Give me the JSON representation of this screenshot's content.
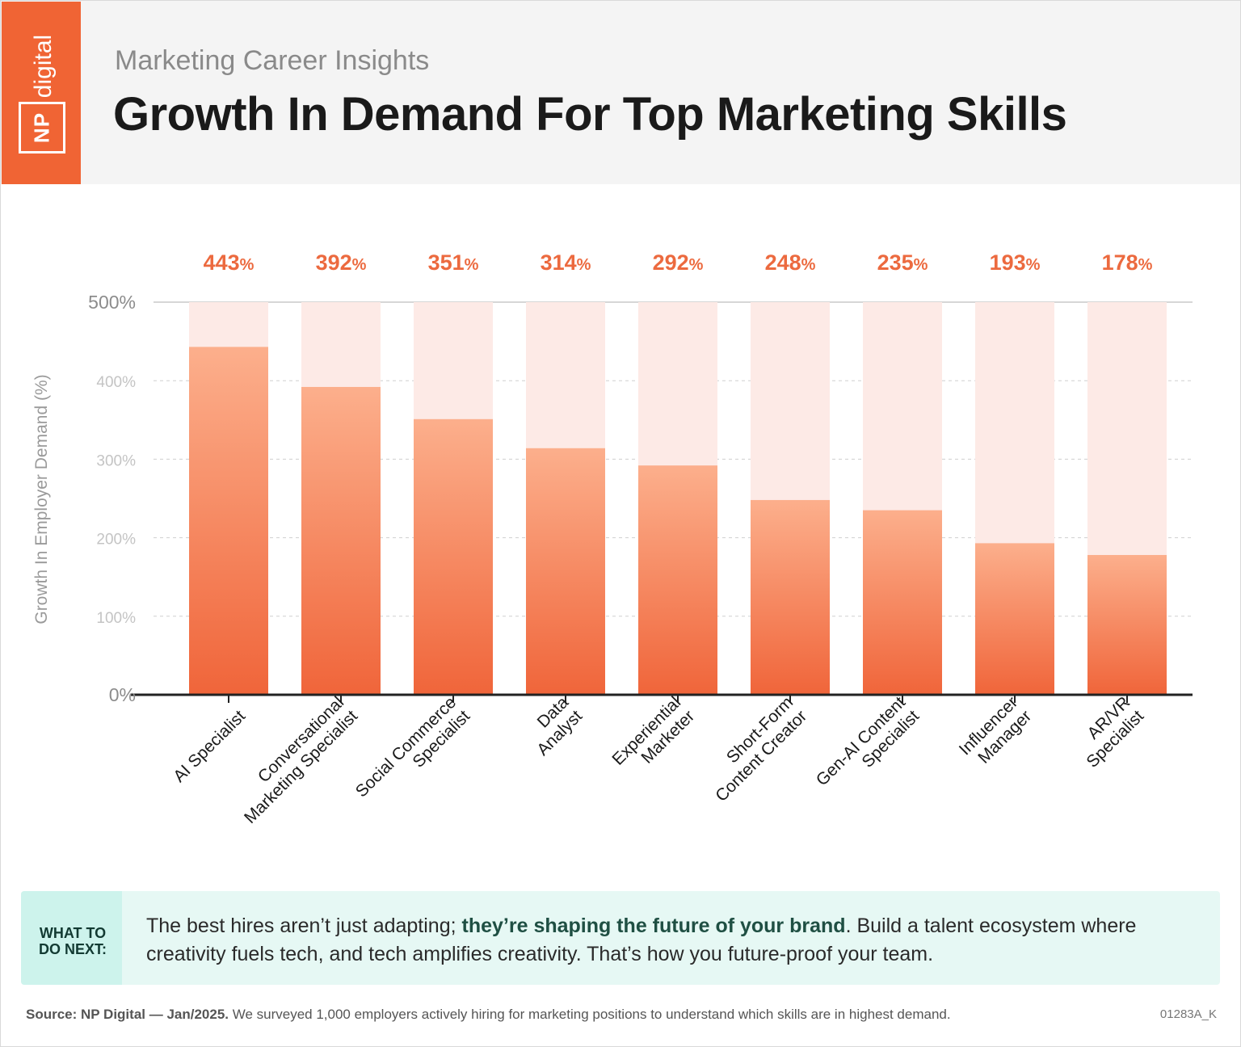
{
  "header": {
    "logo_np": "NP",
    "logo_digital": "digital",
    "subtitle": "Marketing Career Insights",
    "title": "Growth In Demand For Top Marketing Skills"
  },
  "colors": {
    "brand": "#f06434",
    "bar_top": "#fcaf8c",
    "bar_bottom": "#f0653a",
    "bar_bg": "#fdeae6",
    "value_label": "#ec6a3f",
    "callout_bg": "#e6f8f4"
  },
  "chart_data": {
    "type": "bar",
    "title": "Growth In Demand For Top Marketing Skills",
    "ylabel": "Growth In Employer Demand (%)",
    "xlabel": "",
    "ylim": [
      0,
      500
    ],
    "yticks": [
      "0%",
      "100%",
      "200%",
      "300%",
      "400%",
      "500%"
    ],
    "grid": true,
    "categories": [
      [
        "AI Specialist"
      ],
      [
        "Conversational",
        "Marketing Specialist"
      ],
      [
        "Social Commerce",
        "Specialist"
      ],
      [
        "Data",
        "Analyst"
      ],
      [
        "Experiential",
        "Marketer"
      ],
      [
        "Short-Form",
        "Content Creator"
      ],
      [
        "Gen-AI Content",
        "Specialist"
      ],
      [
        "Influencer",
        "Manager"
      ],
      [
        "AR/VR",
        "Specialist"
      ]
    ],
    "values": [
      443,
      392,
      351,
      314,
      292,
      248,
      235,
      193,
      178
    ],
    "value_labels": [
      "443",
      "392",
      "351",
      "314",
      "292",
      "248",
      "235",
      "193",
      "178"
    ],
    "value_suffix": "%"
  },
  "callout": {
    "tag_line1": "WHAT TO",
    "tag_line2": "DO NEXT:",
    "text_before": "The best hires aren’t just adapting; ",
    "text_bold": "they’re shaping the future of your brand",
    "text_after": ". Build a talent ecosystem where creativity fuels tech, and tech amplifies creativity. That’s how you future-proof your team."
  },
  "footer": {
    "source_bold": "Source: NP Digital — Jan/2025.",
    "source_text": " We surveyed 1,000 employers actively hiring for marketing positions to understand which skills are in highest demand.",
    "code": "01283A_K"
  }
}
